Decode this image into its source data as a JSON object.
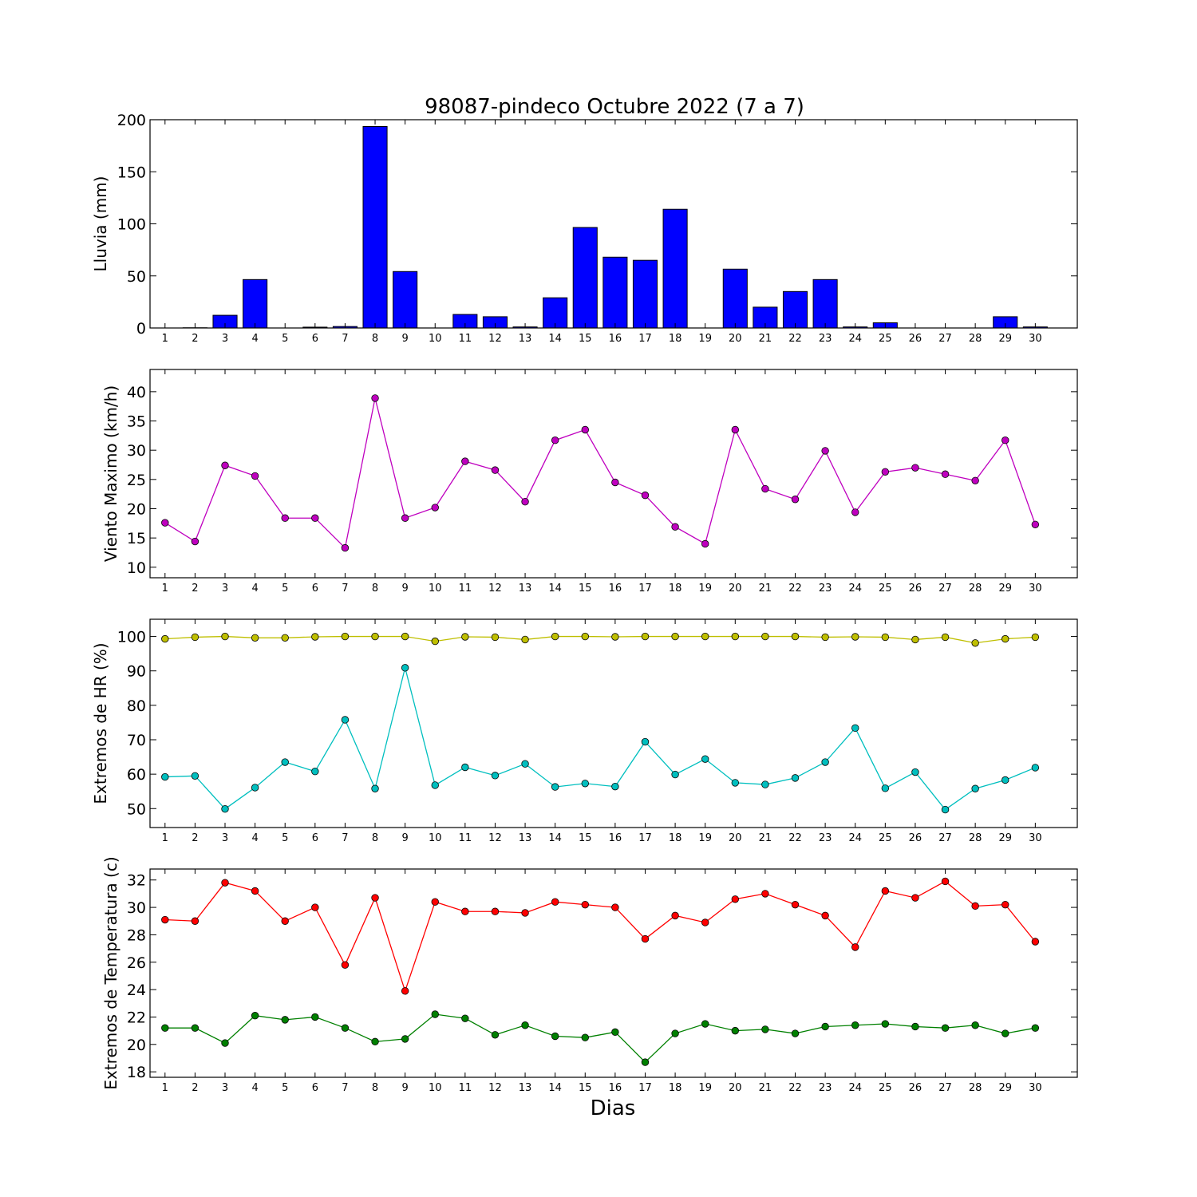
{
  "chart_data": [
    {
      "type": "bar",
      "title": "98087-pindeco Octubre 2022  (7 a 7)",
      "xlabel": "",
      "ylabel": "Lluvia (mm)",
      "categories": [
        "1",
        "2",
        "3",
        "4",
        "5",
        "6",
        "7",
        "8",
        "9",
        "10",
        "11",
        "12",
        "13",
        "14",
        "15",
        "16",
        "17",
        "18",
        "19",
        "20",
        "21",
        "22",
        "23",
        "24",
        "25",
        "26",
        "27",
        "28",
        "29",
        "30"
      ],
      "ylim": [
        0,
        200
      ],
      "yticks": [
        0,
        50,
        100,
        150,
        200
      ],
      "series": [
        {
          "color": "#0000ff",
          "values": [
            0,
            0.2,
            12.2,
            46.5,
            0,
            0.8,
            1.4,
            193.5,
            54.2,
            0,
            13.0,
            10.8,
            1.0,
            29.0,
            96.5,
            68.0,
            65.0,
            114.0,
            0,
            56.5,
            20.0,
            35.0,
            46.5,
            1.0,
            5.0,
            0,
            0,
            0,
            10.8,
            1.0
          ]
        }
      ],
      "grid": false
    },
    {
      "type": "line",
      "ylabel": "Viento Maximo (km/h)",
      "categories": [
        "1",
        "2",
        "3",
        "4",
        "5",
        "6",
        "7",
        "8",
        "9",
        "10",
        "11",
        "12",
        "13",
        "14",
        "15",
        "16",
        "17",
        "18",
        "19",
        "20",
        "21",
        "22",
        "23",
        "24",
        "25",
        "26",
        "27",
        "28",
        "29",
        "30"
      ],
      "ylim": [
        8.2,
        43.8
      ],
      "yticks": [
        10,
        15,
        20,
        25,
        30,
        35,
        40
      ],
      "series": [
        {
          "color": "#bf00bf",
          "values": [
            17.6,
            14.4,
            27.4,
            25.6,
            18.4,
            18.4,
            13.3,
            38.9,
            18.4,
            20.2,
            28.1,
            26.6,
            21.2,
            31.7,
            33.5,
            24.5,
            22.3,
            16.9,
            14.0,
            33.5,
            23.4,
            21.6,
            29.9,
            19.4,
            26.3,
            27.0,
            25.9,
            24.8,
            31.7,
            17.3
          ]
        }
      ],
      "grid": false
    },
    {
      "type": "line",
      "ylabel": "Extremos de HR (%)",
      "categories": [
        "1",
        "2",
        "3",
        "4",
        "5",
        "6",
        "7",
        "8",
        "9",
        "10",
        "11",
        "12",
        "13",
        "14",
        "15",
        "16",
        "17",
        "18",
        "19",
        "20",
        "21",
        "22",
        "23",
        "24",
        "25",
        "26",
        "27",
        "28",
        "29",
        "30"
      ],
      "ylim": [
        44.5,
        105
      ],
      "yticks": [
        50,
        60,
        70,
        80,
        90,
        100
      ],
      "series": [
        {
          "color": "#bfbf00",
          "values": [
            99.3,
            99.8,
            100,
            99.6,
            99.6,
            99.9,
            100,
            100,
            100,
            98.6,
            99.9,
            99.8,
            99.1,
            100,
            100,
            99.9,
            100,
            100,
            100,
            100,
            100,
            100,
            99.8,
            99.9,
            99.8,
            99.1,
            99.8,
            98.1,
            99.3,
            99.8
          ]
        },
        {
          "color": "#00bfbf",
          "values": [
            59.2,
            59.5,
            49.9,
            56.1,
            63.5,
            60.8,
            75.8,
            55.8,
            90.9,
            56.8,
            62.0,
            59.6,
            63.0,
            56.3,
            57.3,
            56.4,
            69.4,
            59.9,
            64.4,
            57.5,
            57.0,
            58.9,
            63.5,
            73.4,
            55.9,
            60.6,
            49.7,
            55.8,
            58.3,
            61.9
          ]
        }
      ],
      "grid": false
    },
    {
      "type": "line",
      "ylabel": "Extremos de Temperatura (c)",
      "xlabel": "Dias",
      "categories": [
        "1",
        "2",
        "3",
        "4",
        "5",
        "6",
        "7",
        "8",
        "9",
        "10",
        "11",
        "12",
        "13",
        "14",
        "15",
        "16",
        "17",
        "18",
        "19",
        "20",
        "21",
        "22",
        "23",
        "24",
        "25",
        "26",
        "27",
        "28",
        "29",
        "30"
      ],
      "ylim": [
        17.6,
        32.8
      ],
      "yticks": [
        18,
        20,
        22,
        24,
        26,
        28,
        30,
        32
      ],
      "series": [
        {
          "color": "#ff0000",
          "values": [
            29.1,
            29.0,
            31.8,
            31.2,
            29.0,
            30.0,
            25.8,
            30.7,
            23.9,
            30.4,
            29.7,
            29.7,
            29.6,
            30.4,
            30.2,
            30.0,
            27.7,
            29.4,
            28.9,
            30.6,
            31.0,
            30.2,
            29.4,
            27.1,
            31.2,
            30.7,
            31.9,
            30.1,
            30.2,
            27.5
          ]
        },
        {
          "color": "#008000",
          "values": [
            21.2,
            21.2,
            20.1,
            22.1,
            21.8,
            22.0,
            21.2,
            20.2,
            20.4,
            22.2,
            21.9,
            20.7,
            21.4,
            20.6,
            20.5,
            20.9,
            18.7,
            20.8,
            21.5,
            21.0,
            21.1,
            20.8,
            21.3,
            21.4,
            21.5,
            21.3,
            21.2,
            21.4,
            20.8,
            21.2
          ]
        }
      ],
      "grid": false
    }
  ]
}
